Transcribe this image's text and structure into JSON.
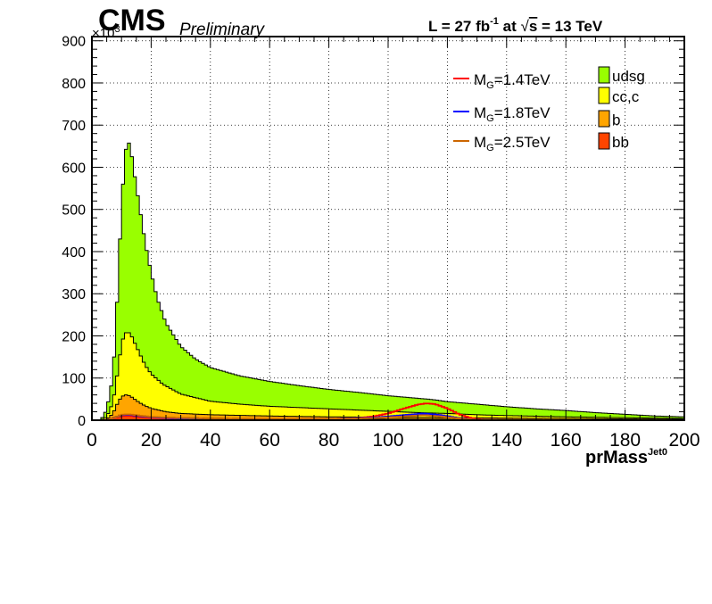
{
  "header": {
    "brand": "CMS",
    "subtitle": "Preliminary",
    "lumi_prefix": "L = 27 fb",
    "lumi_sup": "-1",
    "lumi_mid": " at ",
    "lumi_sqrt": "√",
    "lumi_s": "s",
    "lumi_suffix": " = 13 TeV"
  },
  "chart_data": {
    "type": "histogram",
    "xlabel": "prMass",
    "xlabel_sup": "Jet0",
    "y_multiplier": "×10",
    "y_multiplier_sup": "3",
    "xlim": [
      0,
      200
    ],
    "ylim": [
      0,
      910
    ],
    "grid": true,
    "x_ticks": [
      "0",
      "20",
      "40",
      "60",
      "80",
      "100",
      "120",
      "140",
      "160",
      "180",
      "200"
    ],
    "y_ticks": [
      "0",
      "100",
      "200",
      "300",
      "400",
      "500",
      "600",
      "700",
      "800",
      "900"
    ],
    "stack_series": [
      {
        "name": "udsg",
        "color": "#99ff00",
        "knots": [
          [
            0,
            0
          ],
          [
            3,
            0
          ],
          [
            5,
            25
          ],
          [
            7,
            100
          ],
          [
            8,
            200
          ],
          [
            9,
            360
          ],
          [
            10,
            500
          ],
          [
            11,
            620
          ],
          [
            12,
            665
          ],
          [
            13,
            650
          ],
          [
            14,
            600
          ],
          [
            16,
            510
          ],
          [
            18,
            420
          ],
          [
            20,
            350
          ],
          [
            22,
            290
          ],
          [
            25,
            230
          ],
          [
            30,
            175
          ],
          [
            35,
            145
          ],
          [
            40,
            125
          ],
          [
            50,
            105
          ],
          [
            60,
            92
          ],
          [
            70,
            82
          ],
          [
            80,
            73
          ],
          [
            90,
            66
          ],
          [
            100,
            58
          ],
          [
            110,
            52
          ],
          [
            115,
            49
          ],
          [
            120,
            44
          ],
          [
            130,
            38
          ],
          [
            140,
            32
          ],
          [
            150,
            27
          ],
          [
            160,
            23
          ],
          [
            170,
            18
          ],
          [
            180,
            14
          ],
          [
            190,
            10
          ],
          [
            200,
            8
          ]
        ]
      },
      {
        "name": "cc,c",
        "color": "#ffff00",
        "knots": [
          [
            0,
            0
          ],
          [
            3,
            0
          ],
          [
            5,
            8
          ],
          [
            7,
            40
          ],
          [
            8,
            80
          ],
          [
            9,
            130
          ],
          [
            10,
            180
          ],
          [
            11,
            205
          ],
          [
            12,
            210
          ],
          [
            13,
            205
          ],
          [
            14,
            190
          ],
          [
            16,
            160
          ],
          [
            18,
            130
          ],
          [
            20,
            110
          ],
          [
            24,
            85
          ],
          [
            30,
            62
          ],
          [
            40,
            45
          ],
          [
            50,
            38
          ],
          [
            60,
            33
          ],
          [
            70,
            30
          ],
          [
            80,
            27
          ],
          [
            90,
            24
          ],
          [
            100,
            21
          ],
          [
            110,
            18
          ],
          [
            120,
            16
          ],
          [
            130,
            13
          ],
          [
            140,
            11
          ],
          [
            160,
            8
          ],
          [
            180,
            6
          ],
          [
            200,
            4
          ]
        ]
      },
      {
        "name": "b",
        "color": "#ffa500",
        "knots": [
          [
            0,
            0
          ],
          [
            3,
            0
          ],
          [
            5,
            2
          ],
          [
            7,
            15
          ],
          [
            8,
            30
          ],
          [
            9,
            45
          ],
          [
            10,
            55
          ],
          [
            11,
            60
          ],
          [
            12,
            60
          ],
          [
            13,
            57
          ],
          [
            14,
            52
          ],
          [
            16,
            42
          ],
          [
            18,
            34
          ],
          [
            20,
            28
          ],
          [
            25,
            20
          ],
          [
            30,
            16
          ],
          [
            40,
            13
          ],
          [
            60,
            10
          ],
          [
            80,
            8
          ],
          [
            100,
            7
          ],
          [
            120,
            6
          ],
          [
            140,
            5
          ],
          [
            160,
            4
          ],
          [
            180,
            3
          ],
          [
            200,
            2
          ]
        ]
      },
      {
        "name": "bb",
        "color": "#ff4500",
        "knots": [
          [
            0,
            0
          ],
          [
            4,
            0
          ],
          [
            6,
            3
          ],
          [
            8,
            8
          ],
          [
            10,
            12
          ],
          [
            12,
            13
          ],
          [
            14,
            12
          ],
          [
            16,
            10
          ],
          [
            20,
            8
          ],
          [
            30,
            6
          ],
          [
            50,
            4
          ],
          [
            80,
            3
          ],
          [
            120,
            2
          ],
          [
            160,
            1
          ],
          [
            200,
            1
          ]
        ]
      }
    ],
    "line_series": [
      {
        "name": "M_G=1.4TeV",
        "label": "M",
        "label_sub": "G",
        "label_rest": "=1.4TeV",
        "color": "#ff0000",
        "knots": [
          [
            0,
            0
          ],
          [
            4,
            0
          ],
          [
            6,
            2
          ],
          [
            8,
            6
          ],
          [
            10,
            10
          ],
          [
            12,
            11
          ],
          [
            14,
            10
          ],
          [
            16,
            8
          ],
          [
            20,
            6
          ],
          [
            30,
            4
          ],
          [
            50,
            2
          ],
          [
            80,
            3
          ],
          [
            90,
            5
          ],
          [
            95,
            9
          ],
          [
            100,
            16
          ],
          [
            105,
            27
          ],
          [
            110,
            37
          ],
          [
            113,
            40
          ],
          [
            116,
            38
          ],
          [
            120,
            28
          ],
          [
            124,
            14
          ],
          [
            128,
            5
          ],
          [
            132,
            1
          ],
          [
            140,
            0
          ],
          [
            200,
            0
          ]
        ]
      },
      {
        "name": "M_G=1.8TeV",
        "label": "M",
        "label_sub": "G",
        "label_rest": "=1.8TeV",
        "color": "#0000ff",
        "knots": [
          [
            0,
            0
          ],
          [
            4,
            0
          ],
          [
            6,
            2
          ],
          [
            8,
            7
          ],
          [
            10,
            12
          ],
          [
            12,
            13
          ],
          [
            14,
            12
          ],
          [
            16,
            10
          ],
          [
            20,
            7
          ],
          [
            30,
            4
          ],
          [
            50,
            2
          ],
          [
            80,
            3
          ],
          [
            95,
            6
          ],
          [
            105,
            12
          ],
          [
            112,
            16
          ],
          [
            118,
            12
          ],
          [
            124,
            5
          ],
          [
            130,
            1
          ],
          [
            140,
            0
          ],
          [
            200,
            0
          ]
        ]
      },
      {
        "name": "M_G=2.5TeV",
        "label": "M",
        "label_sub": "G",
        "label_rest": "=2.5TeV",
        "color": "#cc6600",
        "knots": [
          [
            0,
            0
          ],
          [
            4,
            0
          ],
          [
            6,
            2
          ],
          [
            8,
            7
          ],
          [
            10,
            13
          ],
          [
            12,
            14
          ],
          [
            14,
            13
          ],
          [
            16,
            11
          ],
          [
            20,
            8
          ],
          [
            30,
            5
          ],
          [
            50,
            3
          ],
          [
            80,
            3
          ],
          [
            95,
            5
          ],
          [
            105,
            9
          ],
          [
            112,
            12
          ],
          [
            118,
            9
          ],
          [
            124,
            4
          ],
          [
            130,
            1
          ],
          [
            140,
            0
          ],
          [
            200,
            0
          ]
        ]
      }
    ]
  }
}
